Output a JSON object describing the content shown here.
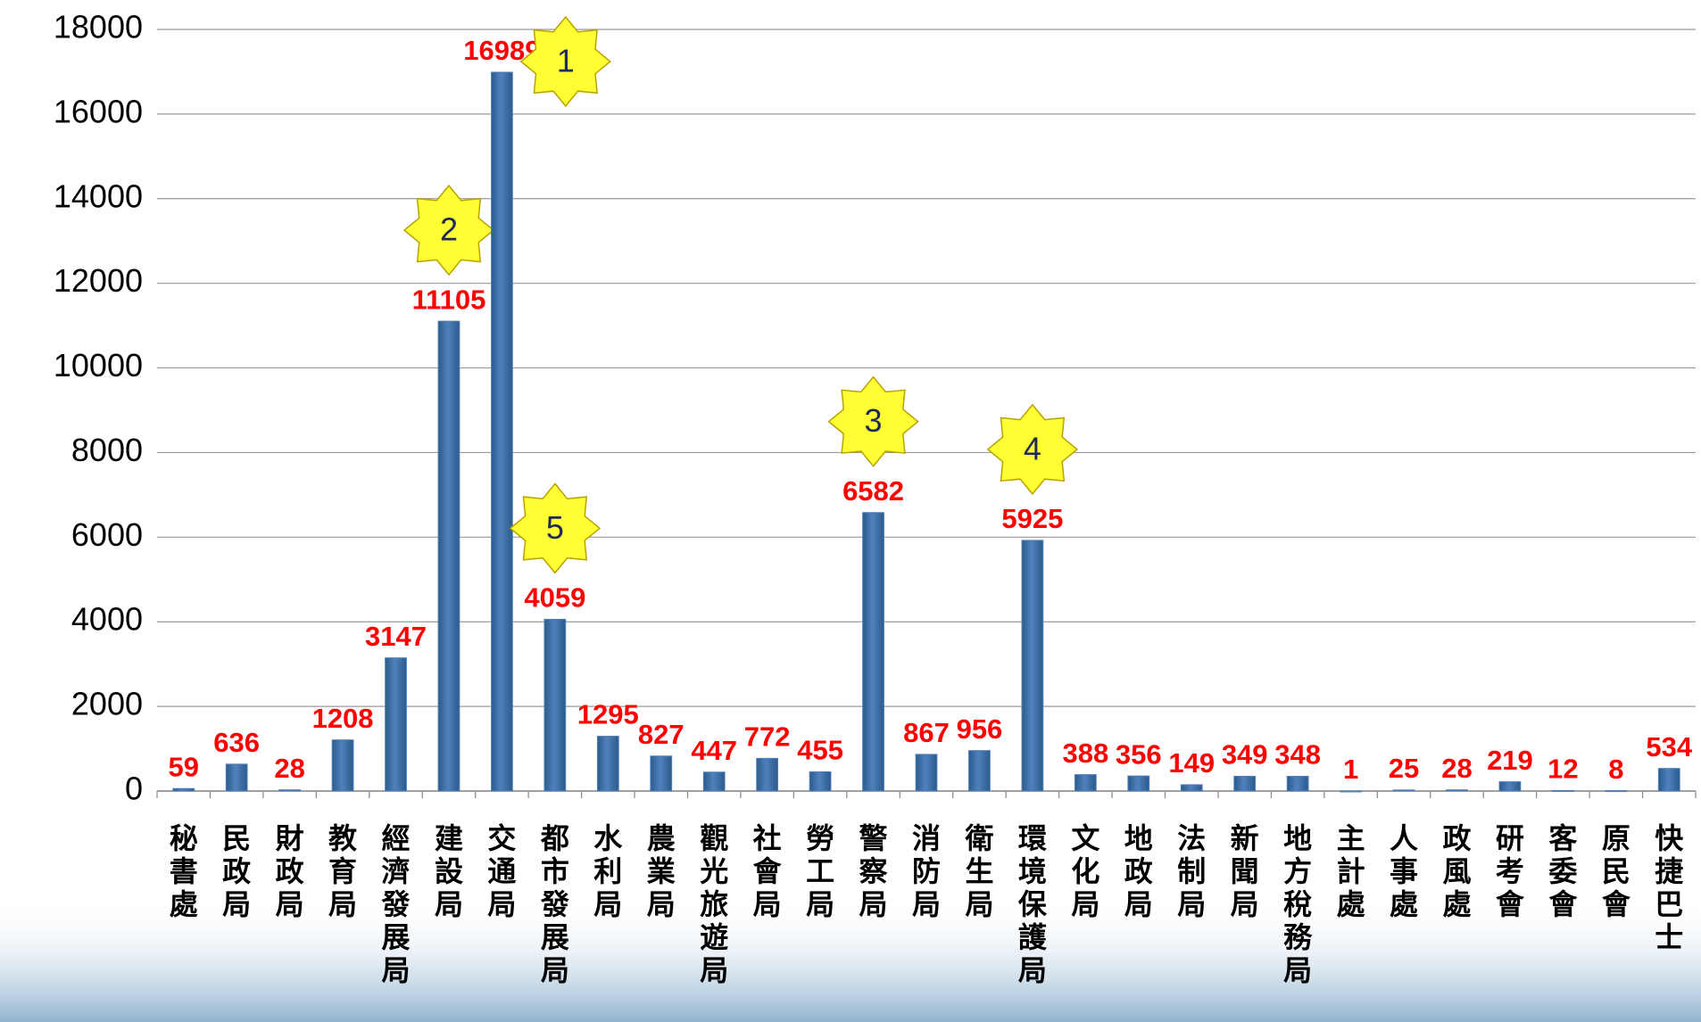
{
  "chart_data": {
    "type": "bar",
    "categories": [
      "秘書處",
      "民政局",
      "財政局",
      "教育局",
      "經濟發展局",
      "建設局",
      "交通局",
      "都市發展局",
      "水利局",
      "農業局",
      "觀光旅遊局",
      "社會局",
      "勞工局",
      "警察局",
      "消防局",
      "衛生局",
      "環境保護局",
      "文化局",
      "地政局",
      "法制局",
      "新聞局",
      "地方稅務局",
      "主計處",
      "人事處",
      "政風處",
      "研考會",
      "客委會",
      "原民會",
      "快捷巴士"
    ],
    "values": [
      59,
      636,
      28,
      1208,
      3147,
      11105,
      16989,
      4059,
      1295,
      827,
      447,
      772,
      455,
      6582,
      867,
      956,
      5925,
      388,
      356,
      149,
      349,
      348,
      1,
      25,
      28,
      219,
      12,
      8,
      534
    ],
    "ranks": [
      null,
      null,
      null,
      null,
      null,
      2,
      1,
      5,
      null,
      null,
      null,
      null,
      null,
      3,
      null,
      null,
      4,
      null,
      null,
      null,
      null,
      null,
      null,
      null,
      null,
      null,
      null,
      null,
      null
    ],
    "color": "#4f81bd",
    "value_label_color": "#ff0000",
    "ylim": [
      0,
      18000
    ],
    "yticks": [
      0,
      2000,
      4000,
      6000,
      8000,
      10000,
      12000,
      14000,
      16000,
      18000
    ],
    "grid": true
  }
}
